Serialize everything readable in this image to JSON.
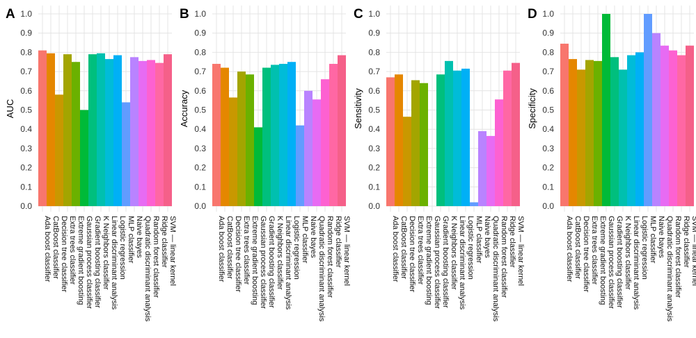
{
  "categories": [
    "Ada boost classifier",
    "CatBoost classifier",
    "Decision tree classifier",
    "Extra trees classifier",
    "Extreme gradient boosting",
    "Gaussian process classifier",
    "Gradient boosting classifier",
    "K Neighbors classifier",
    "Linear discriminant analysis",
    "Logistic regression",
    "MLP classifier",
    "Naive bayes",
    "Quadratic discriminant analysis",
    "Random forest classifier",
    "Ridge classifier",
    "SVM — linear kernel"
  ],
  "colors": [
    "#f8766d",
    "#e58700",
    "#c99800",
    "#a3a500",
    "#6bb100",
    "#00ba38",
    "#00bf7d",
    "#00c0af",
    "#00bcd8",
    "#00b0f6",
    "#619cff",
    "#b983ff",
    "#e76bf3",
    "#fd61d1",
    "#ff67a4",
    "#f56089"
  ],
  "chart_data": [
    {
      "panel": "A",
      "type": "bar",
      "ylabel": "AUC",
      "ylim": [
        0,
        1.0
      ],
      "yticks": [
        "0.0",
        "0.1",
        "0.2",
        "0.3",
        "0.4",
        "0.5",
        "0.6",
        "0.7",
        "0.8",
        "0.9",
        "1.0"
      ],
      "grid": true,
      "values": [
        0.81,
        0.795,
        0.58,
        0.79,
        0.75,
        0.5,
        0.79,
        0.795,
        0.765,
        0.785,
        0.54,
        0.775,
        0.755,
        0.76,
        0.745,
        0.79
      ]
    },
    {
      "panel": "B",
      "type": "bar",
      "ylabel": "Accuracy",
      "ylim": [
        0,
        1.0
      ],
      "yticks": [
        "0.0",
        "0.1",
        "0.2",
        "0.3",
        "0.4",
        "0.5",
        "0.6",
        "0.7",
        "0.8",
        "0.9",
        "1.0"
      ],
      "grid": true,
      "values": [
        0.74,
        0.72,
        0.565,
        0.7,
        0.685,
        0.41,
        0.72,
        0.735,
        0.74,
        0.75,
        0.42,
        0.6,
        0.555,
        0.66,
        0.74,
        0.785
      ]
    },
    {
      "panel": "C",
      "type": "bar",
      "ylabel": "Sensitivity",
      "ylim": [
        0,
        1.0
      ],
      "yticks": [
        "0.0",
        "0.1",
        "0.2",
        "0.3",
        "0.4",
        "0.5",
        "0.6",
        "0.7",
        "0.8",
        "0.9",
        "1.0"
      ],
      "grid": true,
      "values": [
        0.67,
        0.685,
        0.465,
        0.655,
        0.64,
        0.0,
        0.685,
        0.755,
        0.705,
        0.715,
        0.02,
        0.39,
        0.365,
        0.555,
        0.705,
        0.745
      ]
    },
    {
      "panel": "D",
      "type": "bar",
      "ylabel": "Specificity",
      "ylim": [
        0,
        1.0
      ],
      "yticks": [
        "0.0",
        "0.1",
        "0.2",
        "0.3",
        "0.4",
        "0.5",
        "0.6",
        "0.7",
        "0.8",
        "0.9",
        "1.0"
      ],
      "grid": true,
      "values": [
        0.845,
        0.765,
        0.71,
        0.76,
        0.755,
        1.0,
        0.775,
        0.71,
        0.785,
        0.8,
        1.0,
        0.9,
        0.835,
        0.81,
        0.785,
        0.835
      ]
    }
  ]
}
